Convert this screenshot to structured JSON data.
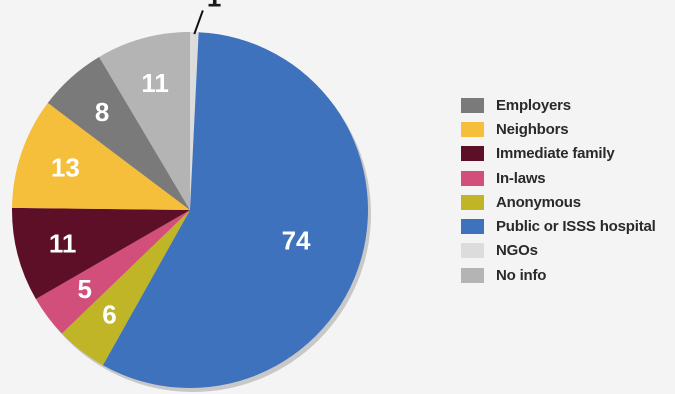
{
  "chart_data": {
    "type": "pie",
    "title": "",
    "start": "12 o'clock, clockwise",
    "slices": [
      {
        "label": "NGOs",
        "value": 1,
        "color": "#dcdcdc",
        "data_label": "1"
      },
      {
        "label": "Public or ISSS hospital",
        "value": 74,
        "color": "#3f72bd",
        "data_label": "74"
      },
      {
        "label": "Anonymous",
        "value": 6,
        "color": "#bfb526",
        "data_label": "6"
      },
      {
        "label": "In-laws",
        "value": 5,
        "color": "#d14f7a",
        "data_label": "5"
      },
      {
        "label": "Immediate family",
        "value": 11,
        "color": "#5c0f26",
        "data_label": "11"
      },
      {
        "label": "Neighbors",
        "value": 13,
        "color": "#f5bf3c",
        "data_label": "13"
      },
      {
        "label": "Employers",
        "value": 8,
        "color": "#7a7a7a",
        "data_label": "8"
      },
      {
        "label": "No info",
        "value": 11,
        "color": "#b4b4b4",
        "data_label": "11"
      }
    ],
    "legend": [
      {
        "label": "Employers",
        "color": "#7a7a7a"
      },
      {
        "label": "Neighbors",
        "color": "#f5bf3c"
      },
      {
        "label": "Immediate family",
        "color": "#5c0f26"
      },
      {
        "label": "In-laws",
        "color": "#d14f7a"
      },
      {
        "label": "Anonymous",
        "color": "#bfb526"
      },
      {
        "label": "Public or ISSS hospital",
        "color": "#3f72bd"
      },
      {
        "label": "NGOs",
        "color": "#dcdcdc"
      },
      {
        "label": "No info",
        "color": "#b4b4b4"
      }
    ],
    "legend_position": "right"
  }
}
